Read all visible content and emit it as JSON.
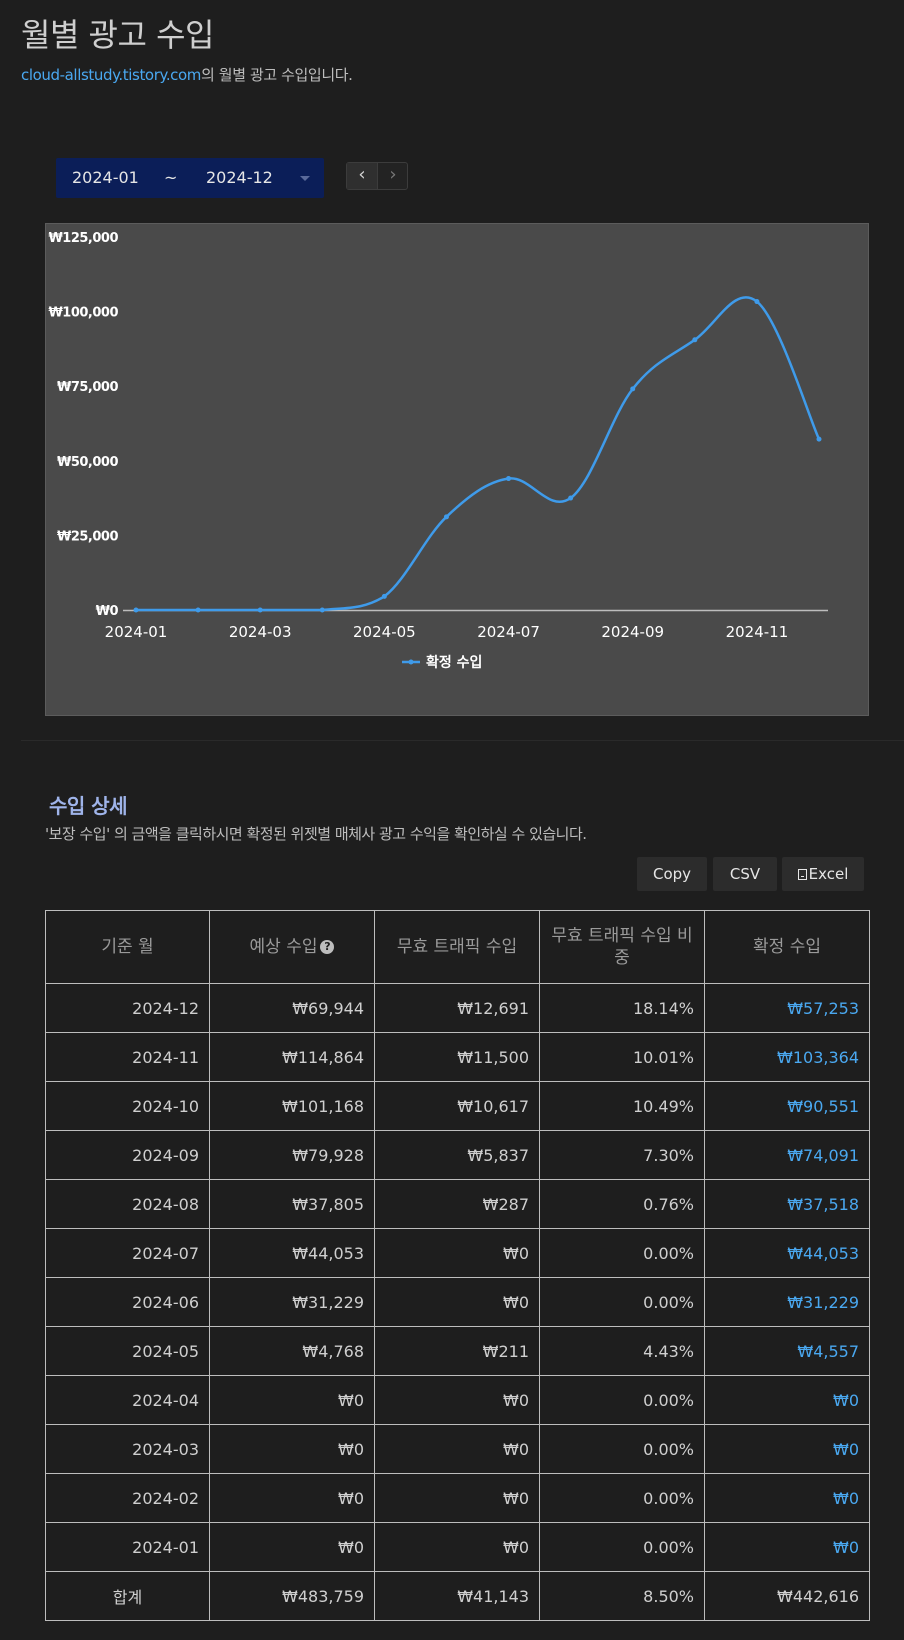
{
  "header": {
    "title": "월별 광고 수입",
    "site": "cloud-allstudy.tistory.com",
    "subtitle_suffix": "의 월별 광고 수입입니다."
  },
  "range": {
    "from": "2024-01",
    "separator": "~",
    "to": "2024-12"
  },
  "nav": {
    "prev": "‹",
    "next": "›"
  },
  "chart_data": {
    "type": "line",
    "x": [
      "2024-01",
      "2024-02",
      "2024-03",
      "2024-04",
      "2024-05",
      "2024-06",
      "2024-07",
      "2024-08",
      "2024-09",
      "2024-10",
      "2024-11",
      "2024-12"
    ],
    "x_tick_labels": [
      "2024-01",
      "2024-03",
      "2024-05",
      "2024-07",
      "2024-09",
      "2024-11"
    ],
    "series": [
      {
        "name": "확정 수입",
        "color": "#3f9bea",
        "values": [
          0,
          0,
          0,
          0,
          4557,
          31229,
          44053,
          37518,
          74091,
          90551,
          103364,
          57253
        ]
      }
    ],
    "y_ticks": [
      0,
      25000,
      50000,
      75000,
      100000,
      125000
    ],
    "y_tick_labels": [
      "₩0",
      "₩25,000",
      "₩50,000",
      "₩75,000",
      "₩100,000",
      "₩125,000"
    ],
    "ylim": [
      0,
      125000
    ],
    "legend": "bottom-center",
    "grid": false
  },
  "details": {
    "title": "수입 상세",
    "description": "'보장 수입' 의 금액을 클릭하시면 확정된 위젯별 매체사 광고 수익을 확인하실 수 있습니다.",
    "buttons": {
      "copy": "Copy",
      "csv": "CSV",
      "excel": "Excel"
    },
    "columns": {
      "month": "기준 월",
      "expected": "예상 수입",
      "invalid": "무효 트래픽 수입",
      "ratio": "무효 트래픽 수입 비중",
      "confirmed": "확정 수입"
    },
    "rows": [
      {
        "month": "2024-12",
        "expected": "₩69,944",
        "invalid": "₩12,691",
        "ratio": "18.14%",
        "confirmed": "₩57,253"
      },
      {
        "month": "2024-11",
        "expected": "₩114,864",
        "invalid": "₩11,500",
        "ratio": "10.01%",
        "confirmed": "₩103,364"
      },
      {
        "month": "2024-10",
        "expected": "₩101,168",
        "invalid": "₩10,617",
        "ratio": "10.49%",
        "confirmed": "₩90,551"
      },
      {
        "month": "2024-09",
        "expected": "₩79,928",
        "invalid": "₩5,837",
        "ratio": "7.30%",
        "confirmed": "₩74,091"
      },
      {
        "month": "2024-08",
        "expected": "₩37,805",
        "invalid": "₩287",
        "ratio": "0.76%",
        "confirmed": "₩37,518"
      },
      {
        "month": "2024-07",
        "expected": "₩44,053",
        "invalid": "₩0",
        "ratio": "0.00%",
        "confirmed": "₩44,053"
      },
      {
        "month": "2024-06",
        "expected": "₩31,229",
        "invalid": "₩0",
        "ratio": "0.00%",
        "confirmed": "₩31,229"
      },
      {
        "month": "2024-05",
        "expected": "₩4,768",
        "invalid": "₩211",
        "ratio": "4.43%",
        "confirmed": "₩4,557"
      },
      {
        "month": "2024-04",
        "expected": "₩0",
        "invalid": "₩0",
        "ratio": "0.00%",
        "confirmed": "₩0"
      },
      {
        "month": "2024-03",
        "expected": "₩0",
        "invalid": "₩0",
        "ratio": "0.00%",
        "confirmed": "₩0"
      },
      {
        "month": "2024-02",
        "expected": "₩0",
        "invalid": "₩0",
        "ratio": "0.00%",
        "confirmed": "₩0"
      },
      {
        "month": "2024-01",
        "expected": "₩0",
        "invalid": "₩0",
        "ratio": "0.00%",
        "confirmed": "₩0"
      }
    ],
    "total": {
      "label": "합계",
      "expected": "₩483,759",
      "invalid": "₩41,143",
      "ratio": "8.50%",
      "confirmed": "₩442,616"
    }
  }
}
